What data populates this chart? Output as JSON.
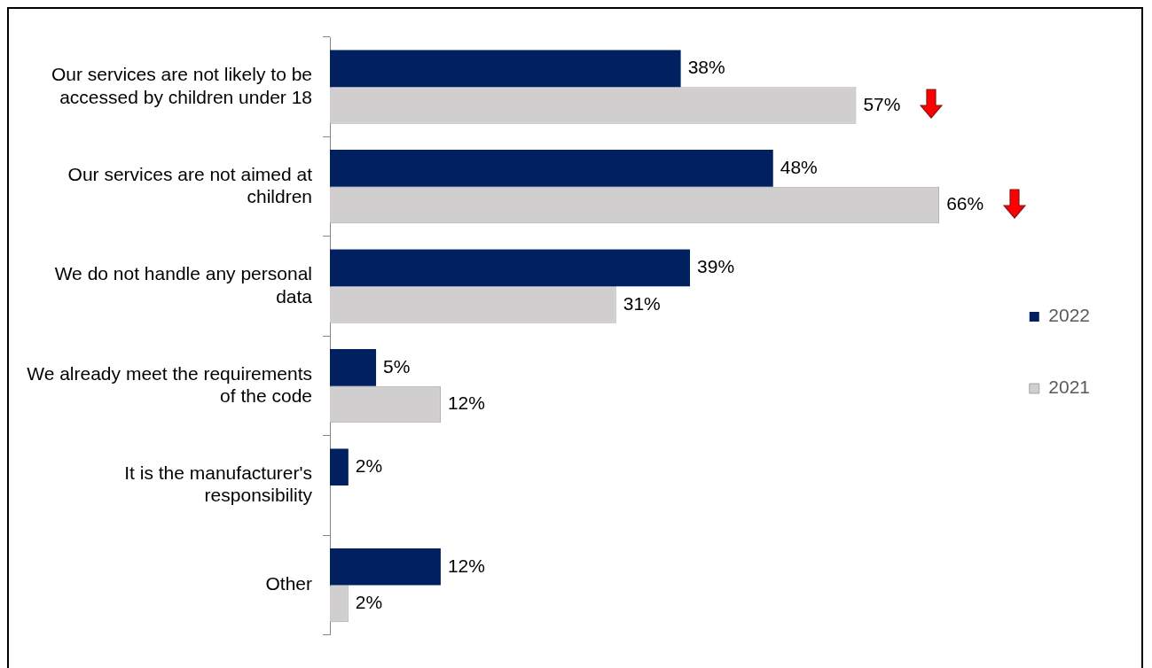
{
  "chart_data": {
    "type": "bar",
    "orientation": "horizontal",
    "categories": [
      "Our services are not likely to be accessed by children under 18",
      "Our services are not aimed at children",
      "We do not handle any personal data",
      "We already meet the requirements of the code",
      "It is the manufacturer's responsibility",
      "Other"
    ],
    "series": [
      {
        "name": "2022",
        "color": "#002060",
        "values": [
          38,
          48,
          39,
          5,
          2,
          12
        ],
        "value_labels": [
          "38%",
          "48%",
          "39%",
          "5%",
          "2%",
          "12%"
        ]
      },
      {
        "name": "2021",
        "color": "#d0cece",
        "values": [
          57,
          66,
          31,
          12,
          null,
          2
        ],
        "value_labels": [
          "57%",
          "66%",
          "31%",
          "12%",
          null,
          "2%"
        ]
      }
    ],
    "legend": "right",
    "grid": false
  }
}
